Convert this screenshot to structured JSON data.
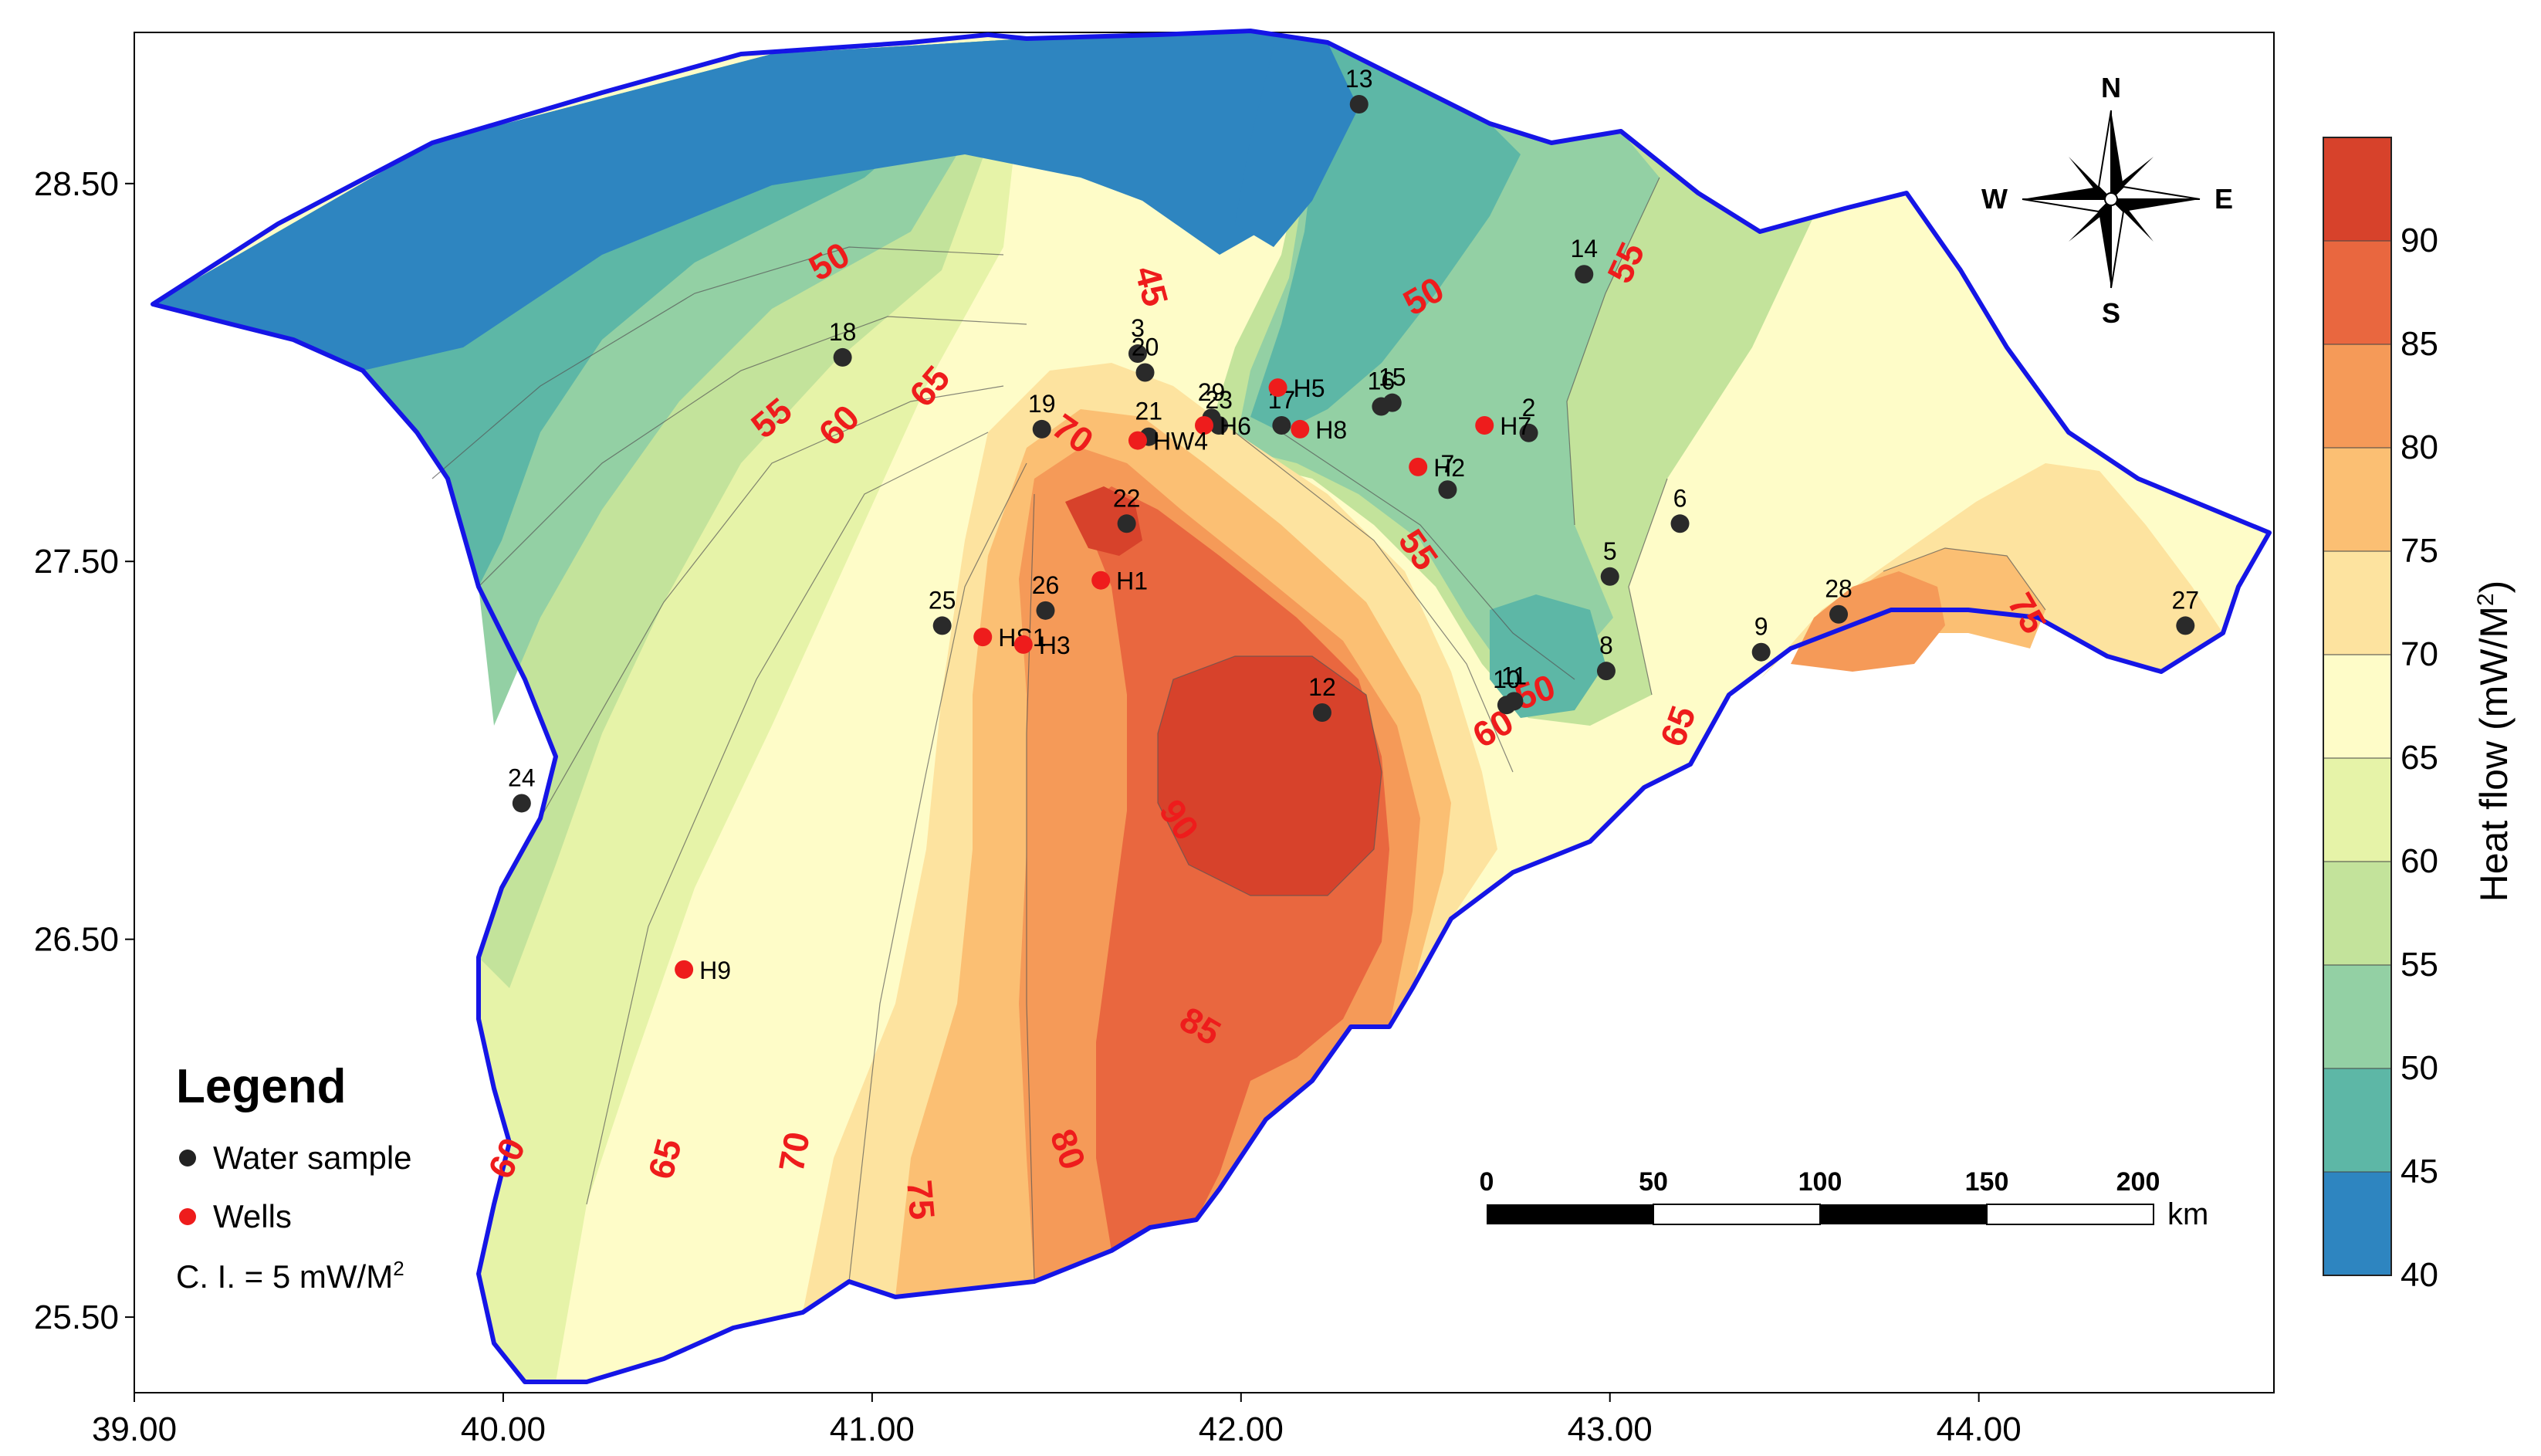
{
  "map": {
    "x_ticks": [
      "39.00",
      "40.00",
      "41.00",
      "42.00",
      "43.00",
      "44.00"
    ],
    "y_ticks": [
      "28.50",
      "27.50",
      "26.50",
      "25.50"
    ],
    "x_range": [
      39.0,
      44.8
    ],
    "y_range": [
      25.3,
      28.9
    ]
  },
  "legend": {
    "title": "Legend",
    "water_sample": "Water sample",
    "wells": "Wells",
    "contour_interval_prefix": "C. I. = 5 mW/M",
    "contour_interval_sup": "2"
  },
  "scale_bar": {
    "labels": [
      "0",
      "50",
      "100",
      "150",
      "200"
    ],
    "unit": "km"
  },
  "north_arrow": {
    "n": "N",
    "s": "S",
    "e": "E",
    "w": "W"
  },
  "colorbar": {
    "title": "Heat flow (mW/M",
    "title_sup": "2",
    "title_end": ")",
    "ticks": [
      "90",
      "85",
      "80",
      "75",
      "70",
      "65",
      "60",
      "55",
      "50",
      "45",
      "40"
    ],
    "colors": [
      "#d7422b",
      "#e9673f",
      "#f59a58",
      "#fbbf73",
      "#fde39f",
      "#fefcc8",
      "#e6f3a8",
      "#c3e39b",
      "#93d0a4",
      "#5db7a6",
      "#2e85c0"
    ]
  },
  "contour_labels": [
    "45",
    "50",
    "50",
    "55",
    "55",
    "55",
    "60",
    "60",
    "60",
    "65",
    "65",
    "65",
    "70",
    "70",
    "75",
    "75",
    "80",
    "85",
    "90",
    "50"
  ],
  "water_samples": [
    {
      "label": "13",
      "lon": 42.32,
      "lat": 28.71
    },
    {
      "label": "14",
      "lon": 42.93,
      "lat": 28.26
    },
    {
      "label": "18",
      "lon": 40.92,
      "lat": 28.04
    },
    {
      "label": "3",
      "lon": 41.72,
      "lat": 28.05
    },
    {
      "label": "20",
      "lon": 41.74,
      "lat": 28.0
    },
    {
      "label": "29",
      "lon": 41.92,
      "lat": 27.88
    },
    {
      "label": "23",
      "lon": 41.94,
      "lat": 27.86
    },
    {
      "label": "17",
      "lon": 42.11,
      "lat": 27.86
    },
    {
      "label": "16",
      "lon": 42.38,
      "lat": 27.91
    },
    {
      "label": "15",
      "lon": 42.41,
      "lat": 27.92
    },
    {
      "label": "2",
      "lon": 42.78,
      "lat": 27.84
    },
    {
      "label": "19",
      "lon": 41.46,
      "lat": 27.85
    },
    {
      "label": "21",
      "lon": 41.75,
      "lat": 27.83
    },
    {
      "label": "7",
      "lon": 42.56,
      "lat": 27.69
    },
    {
      "label": "6",
      "lon": 43.19,
      "lat": 27.6
    },
    {
      "label": "22",
      "lon": 41.69,
      "lat": 27.6
    },
    {
      "label": "5",
      "lon": 43.0,
      "lat": 27.46
    },
    {
      "label": "26",
      "lon": 41.47,
      "lat": 27.37
    },
    {
      "label": "25",
      "lon": 41.19,
      "lat": 27.33
    },
    {
      "label": "28",
      "lon": 43.62,
      "lat": 27.36
    },
    {
      "label": "27",
      "lon": 44.56,
      "lat": 27.33
    },
    {
      "label": "9",
      "lon": 43.41,
      "lat": 27.26
    },
    {
      "label": "8",
      "lon": 42.99,
      "lat": 27.21
    },
    {
      "label": "11",
      "lon": 42.74,
      "lat": 27.13
    },
    {
      "label": "10",
      "lon": 42.72,
      "lat": 27.12
    },
    {
      "label": "12",
      "lon": 42.22,
      "lat": 27.1
    },
    {
      "label": "24",
      "lon": 40.05,
      "lat": 26.86
    }
  ],
  "wells": [
    {
      "label": "H5",
      "lon": 42.1,
      "lat": 27.96
    },
    {
      "label": "H7",
      "lon": 42.66,
      "lat": 27.86
    },
    {
      "label": "H6",
      "lon": 41.9,
      "lat": 27.86
    },
    {
      "label": "H8",
      "lon": 42.16,
      "lat": 27.85
    },
    {
      "label": "H2",
      "lon": 42.48,
      "lat": 27.75
    },
    {
      "label": "HW4",
      "lon": 41.72,
      "lat": 27.82
    },
    {
      "label": "H1",
      "lon": 41.62,
      "lat": 27.45
    },
    {
      "label": "HS1",
      "lon": 41.3,
      "lat": 27.3
    },
    {
      "label": "H3",
      "lon": 41.41,
      "lat": 27.28
    },
    {
      "label": "H9",
      "lon": 40.49,
      "lat": 26.42
    }
  ]
}
